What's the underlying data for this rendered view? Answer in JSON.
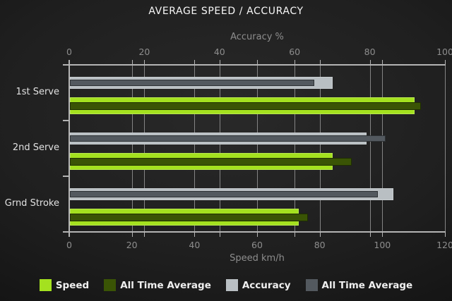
{
  "title": "AVERAGE SPEED / ACCURACY",
  "chart_data": {
    "type": "bar",
    "orientation": "horizontal",
    "grid": true,
    "categories": [
      "1st Serve",
      "2nd Serve",
      "Grnd Stroke"
    ],
    "axes": {
      "top": {
        "label": "Accuracy %",
        "ticks": [
          0,
          20,
          40,
          60,
          80,
          100
        ],
        "range": [
          0,
          100
        ]
      },
      "bottom": {
        "label": "Speed km/h",
        "ticks": [
          0,
          20,
          40,
          60,
          80,
          100,
          120
        ],
        "range": [
          0,
          120
        ]
      }
    },
    "series": [
      {
        "name": "Speed",
        "axis": "bottom",
        "role": "outer",
        "color": "#a4e11f",
        "values": [
          110,
          84,
          73
        ]
      },
      {
        "name": "All Time Average",
        "axis": "bottom",
        "role": "overlay",
        "color": "#3a5405",
        "values": [
          112,
          90,
          76
        ]
      },
      {
        "name": "Accuracy",
        "axis": "top",
        "role": "outer",
        "color": "#b9bfc3",
        "values": [
          70,
          79,
          86
        ]
      },
      {
        "name": "All Time Average",
        "axis": "top",
        "role": "overlay",
        "color": "#53595f",
        "values": [
          65,
          84,
          82
        ]
      }
    ],
    "legend_position": "bottom"
  }
}
